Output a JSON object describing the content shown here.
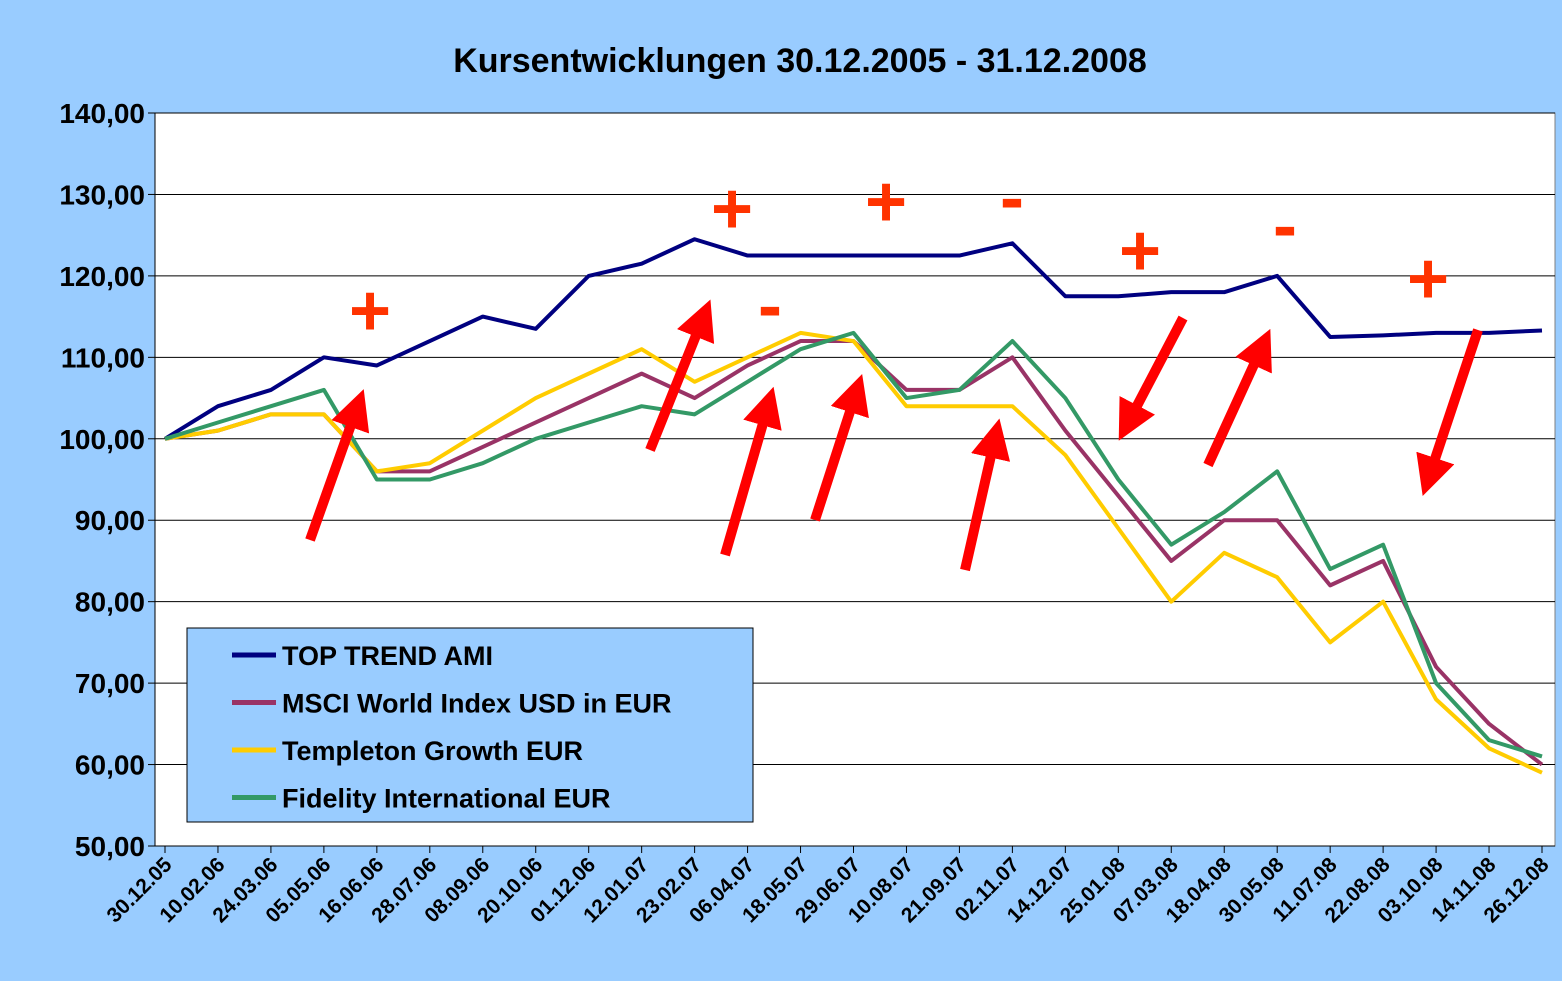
{
  "chart_data": {
    "type": "line",
    "title": "Kursentwicklungen 30.12.2005 - 31.12.2008",
    "categories": [
      "30.12.05",
      "10.02.06",
      "24.03.06",
      "05.05.06",
      "16.06.06",
      "28.07.06",
      "08.09.06",
      "20.10.06",
      "01.12.06",
      "12.01.07",
      "23.02.07",
      "06.04.07",
      "18.05.07",
      "29.06.07",
      "10.08.07",
      "21.09.07",
      "02.11.07",
      "14.12.07",
      "25.01.08",
      "07.03.08",
      "18.04.08",
      "30.05.08",
      "11.07.08",
      "22.08.08",
      "03.10.08",
      "14.11.08",
      "26.12.08"
    ],
    "series": [
      {
        "name": "TOP TREND AMI",
        "color": "#000080",
        "values": [
          100,
          104,
          106,
          110,
          109,
          112,
          115,
          113.5,
          120,
          121.5,
          124.5,
          122.5,
          122.5,
          122.5,
          122.5,
          122.5,
          124,
          117.5,
          117.5,
          118,
          118,
          120,
          112.5,
          112.7,
          113,
          113,
          113.3
        ]
      },
      {
        "name": "MSCI World Index USD in EUR",
        "color": "#993366",
        "values": [
          100,
          101,
          103,
          103,
          96,
          96,
          99,
          102,
          105,
          108,
          105,
          109,
          112,
          112,
          106,
          106,
          110,
          101,
          93,
          85,
          90,
          90,
          82,
          85,
          72,
          65,
          60
        ]
      },
      {
        "name": "Templeton Growth EUR",
        "color": "#ffcc00",
        "values": [
          100,
          101,
          103,
          103,
          96,
          97,
          101,
          105,
          108,
          111,
          107,
          110,
          113,
          112,
          104,
          104,
          104,
          98,
          89,
          80,
          86,
          83,
          75,
          80,
          68,
          62,
          59
        ]
      },
      {
        "name": "Fidelity International EUR",
        "color": "#339966",
        "values": [
          100,
          102,
          104,
          106,
          95,
          95,
          97,
          100,
          102,
          104,
          103,
          107,
          111,
          113,
          105,
          106,
          112,
          105,
          95,
          87,
          91,
          96,
          84,
          87,
          70,
          63,
          61
        ]
      }
    ],
    "ylim": [
      50,
      140
    ],
    "yticks": [
      {
        "value": 50,
        "label": "50,00"
      },
      {
        "value": 60,
        "label": "60,00"
      },
      {
        "value": 70,
        "label": "70,00"
      },
      {
        "value": 80,
        "label": "80,00"
      },
      {
        "value": 90,
        "label": "90,00"
      },
      {
        "value": 100,
        "label": "100,00"
      },
      {
        "value": 110,
        "label": "110,00"
      },
      {
        "value": 120,
        "label": "120,00"
      },
      {
        "value": 130,
        "label": "130,00"
      },
      {
        "value": 140,
        "label": "140,00"
      }
    ],
    "grid": true,
    "legend": "lower left",
    "annotations": [
      {
        "text": "+"
      },
      {
        "text": "+"
      },
      {
        "text": "+"
      },
      {
        "text": "+"
      },
      {
        "text": "+"
      },
      {
        "text": "-"
      },
      {
        "text": "-"
      },
      {
        "text": "-"
      }
    ]
  }
}
